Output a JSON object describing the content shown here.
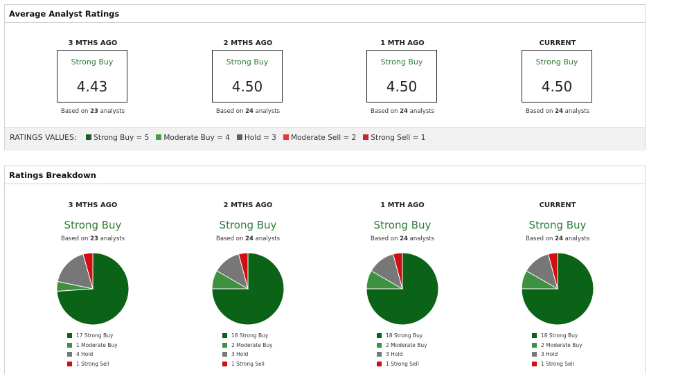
{
  "avg_panel": {
    "title": "Average Analyst Ratings",
    "legend_heading": "RATINGS VALUES:",
    "legend": [
      {
        "label": "Strong Buy = 5",
        "color": "#1b5e20"
      },
      {
        "label": "Moderate Buy = 4",
        "color": "#43a047"
      },
      {
        "label": "Hold = 3",
        "color": "#616161"
      },
      {
        "label": "Moderate Sell = 2",
        "color": "#e53935"
      },
      {
        "label": "Strong Sell = 1",
        "color": "#c62828"
      }
    ]
  },
  "breakdown_panel": {
    "title": "Ratings Breakdown"
  },
  "periods": [
    {
      "label": "3 MTHS AGO",
      "rating": "Strong Buy",
      "score": "4.43",
      "analysts": "23",
      "based_prefix": "Based on ",
      "based_suffix": " analysts"
    },
    {
      "label": "2 MTHS AGO",
      "rating": "Strong Buy",
      "score": "4.50",
      "analysts": "24",
      "based_prefix": "Based on ",
      "based_suffix": " analysts"
    },
    {
      "label": "1 MTH AGO",
      "rating": "Strong Buy",
      "score": "4.50",
      "analysts": "24",
      "based_prefix": "Based on ",
      "based_suffix": " analysts"
    },
    {
      "label": "CURRENT",
      "rating": "Strong Buy",
      "score": "4.50",
      "analysts": "24",
      "based_prefix": "Based on ",
      "based_suffix": " analysts"
    }
  ],
  "chart_data": [
    {
      "type": "pie",
      "title": "3 MTHS AGO",
      "categories": [
        "Strong Buy",
        "Moderate Buy",
        "Hold",
        "Strong Sell"
      ],
      "values": [
        17,
        1,
        4,
        1
      ],
      "legend_labels": [
        "17 Strong Buy",
        "1 Moderate Buy",
        "4 Hold",
        "1 Strong Sell"
      ],
      "colors": [
        "#0b6318",
        "#3f9142",
        "#777777",
        "#d01010"
      ]
    },
    {
      "type": "pie",
      "title": "2 MTHS AGO",
      "categories": [
        "Strong Buy",
        "Moderate Buy",
        "Hold",
        "Strong Sell"
      ],
      "values": [
        18,
        2,
        3,
        1
      ],
      "legend_labels": [
        "18 Strong Buy",
        "2 Moderate Buy",
        "3 Hold",
        "1 Strong Sell"
      ],
      "colors": [
        "#0b6318",
        "#3f9142",
        "#777777",
        "#d01010"
      ]
    },
    {
      "type": "pie",
      "title": "1 MTH AGO",
      "categories": [
        "Strong Buy",
        "Moderate Buy",
        "Hold",
        "Strong Sell"
      ],
      "values": [
        18,
        2,
        3,
        1
      ],
      "legend_labels": [
        "18 Strong Buy",
        "2 Moderate Buy",
        "3 Hold",
        "1 Strong Sell"
      ],
      "colors": [
        "#0b6318",
        "#3f9142",
        "#777777",
        "#d01010"
      ]
    },
    {
      "type": "pie",
      "title": "CURRENT",
      "categories": [
        "Strong Buy",
        "Moderate Buy",
        "Hold",
        "Strong Sell"
      ],
      "values": [
        18,
        2,
        3,
        1
      ],
      "legend_labels": [
        "18 Strong Buy",
        "2 Moderate Buy",
        "3 Hold",
        "1 Strong Sell"
      ],
      "colors": [
        "#0b6318",
        "#3f9142",
        "#777777",
        "#d01010"
      ]
    }
  ]
}
